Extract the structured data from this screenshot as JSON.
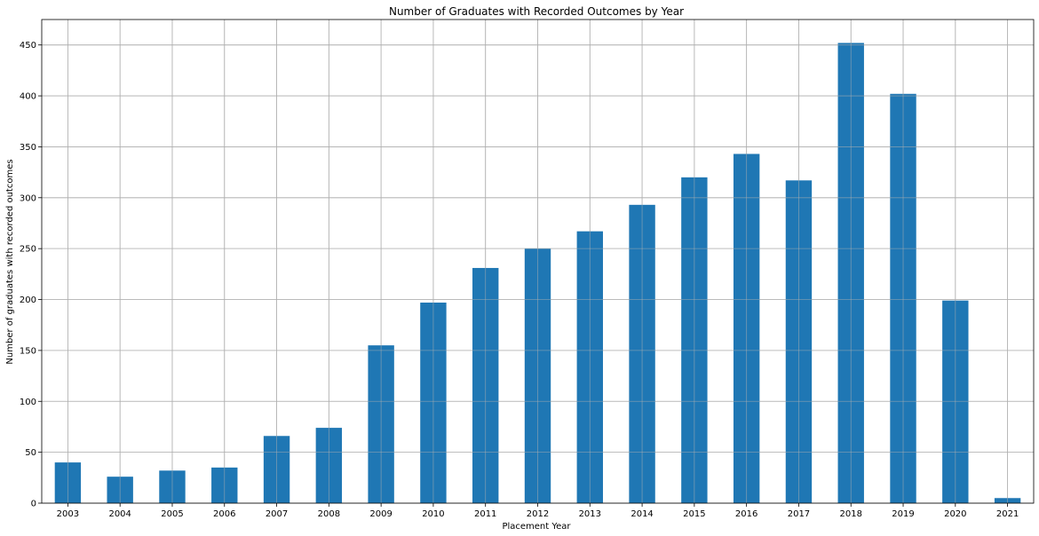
{
  "chart_data": {
    "type": "bar",
    "title": "Number of Graduates with Recorded Outcomes by Year",
    "xlabel": "Placement Year",
    "ylabel": "Number of graduates with recorded outcomes",
    "categories": [
      "2003",
      "2004",
      "2005",
      "2006",
      "2007",
      "2008",
      "2009",
      "2010",
      "2011",
      "2012",
      "2013",
      "2014",
      "2015",
      "2016",
      "2017",
      "2018",
      "2019",
      "2020",
      "2021"
    ],
    "values": [
      40,
      26,
      32,
      35,
      66,
      74,
      155,
      197,
      231,
      250,
      267,
      293,
      320,
      343,
      317,
      452,
      402,
      199,
      5
    ],
    "ylim": [
      0,
      475
    ],
    "yticks": [
      0,
      50,
      100,
      150,
      200,
      250,
      300,
      350,
      400,
      450
    ],
    "grid": true,
    "legend": "none",
    "colors": {
      "bar": "#1f77b4",
      "grid": "#b0b0b0",
      "axis": "#000000"
    }
  }
}
